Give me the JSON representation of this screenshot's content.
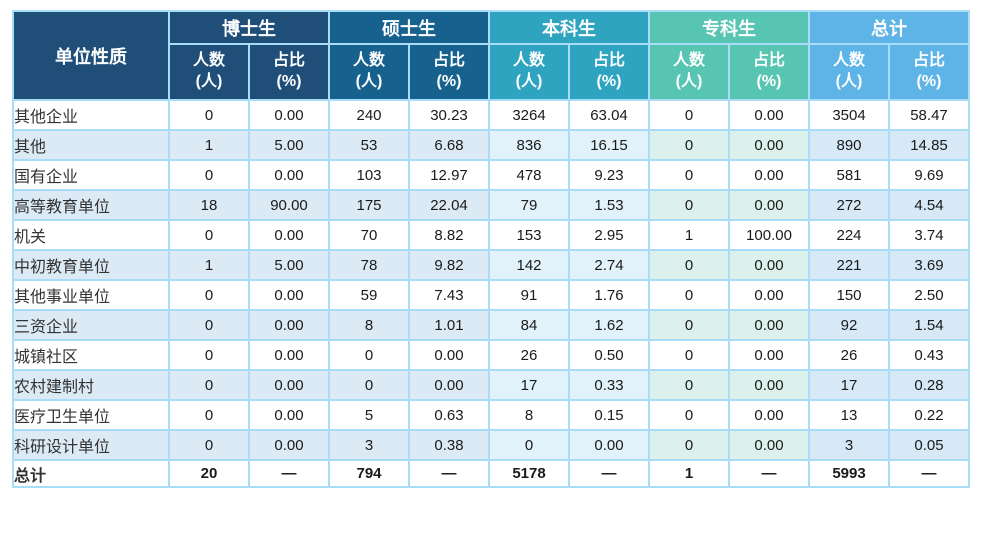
{
  "colors": {
    "border": "#A9DCF6",
    "corner_bg": "#1F4E79",
    "header_text": "#FFFFFF",
    "even_row_label": "#DCEAF6",
    "label_text": "#333333",
    "value_text": "#1A1A1A"
  },
  "chart_data": {
    "type": "table",
    "corner_label": "单位性质",
    "groups": [
      {
        "label": "博士生",
        "color": "#1F4E79",
        "even_tint": "#DCEAF6"
      },
      {
        "label": "硕士生",
        "color": "#17618E",
        "even_tint": "#DCEAF6"
      },
      {
        "label": "本科生",
        "color": "#2EA4C0",
        "even_tint": "#E2F2FA"
      },
      {
        "label": "专科生",
        "color": "#57C5B1",
        "even_tint": "#DDF1EC"
      },
      {
        "label": "总计",
        "color": "#5EB4E7",
        "even_tint": "#D7E9F7"
      }
    ],
    "subheaders": {
      "count": "人数\n(人)",
      "percent": "占比\n(%)"
    },
    "rows": [
      {
        "label": "其他企业",
        "values": [
          "0",
          "0.00",
          "240",
          "30.23",
          "3264",
          "63.04",
          "0",
          "0.00",
          "3504",
          "58.47"
        ]
      },
      {
        "label": "其他",
        "values": [
          "1",
          "5.00",
          "53",
          "6.68",
          "836",
          "16.15",
          "0",
          "0.00",
          "890",
          "14.85"
        ]
      },
      {
        "label": "国有企业",
        "values": [
          "0",
          "0.00",
          "103",
          "12.97",
          "478",
          "9.23",
          "0",
          "0.00",
          "581",
          "9.69"
        ]
      },
      {
        "label": "高等教育单位",
        "values": [
          "18",
          "90.00",
          "175",
          "22.04",
          "79",
          "1.53",
          "0",
          "0.00",
          "272",
          "4.54"
        ]
      },
      {
        "label": "机关",
        "values": [
          "0",
          "0.00",
          "70",
          "8.82",
          "153",
          "2.95",
          "1",
          "100.00",
          "224",
          "3.74"
        ]
      },
      {
        "label": "中初教育单位",
        "values": [
          "1",
          "5.00",
          "78",
          "9.82",
          "142",
          "2.74",
          "0",
          "0.00",
          "221",
          "3.69"
        ]
      },
      {
        "label": "其他事业单位",
        "values": [
          "0",
          "0.00",
          "59",
          "7.43",
          "91",
          "1.76",
          "0",
          "0.00",
          "150",
          "2.50"
        ]
      },
      {
        "label": "三资企业",
        "values": [
          "0",
          "0.00",
          "8",
          "1.01",
          "84",
          "1.62",
          "0",
          "0.00",
          "92",
          "1.54"
        ]
      },
      {
        "label": "城镇社区",
        "values": [
          "0",
          "0.00",
          "0",
          "0.00",
          "26",
          "0.50",
          "0",
          "0.00",
          "26",
          "0.43"
        ]
      },
      {
        "label": "农村建制村",
        "values": [
          "0",
          "0.00",
          "0",
          "0.00",
          "17",
          "0.33",
          "0",
          "0.00",
          "17",
          "0.28"
        ]
      },
      {
        "label": "医疗卫生单位",
        "values": [
          "0",
          "0.00",
          "5",
          "0.63",
          "8",
          "0.15",
          "0",
          "0.00",
          "13",
          "0.22"
        ]
      },
      {
        "label": "科研设计单位",
        "values": [
          "0",
          "0.00",
          "3",
          "0.38",
          "0",
          "0.00",
          "0",
          "0.00",
          "3",
          "0.05"
        ]
      }
    ],
    "total_row": {
      "label": "总计",
      "values": [
        "20",
        "—",
        "794",
        "—",
        "5178",
        "—",
        "1",
        "—",
        "5993",
        "—"
      ]
    }
  }
}
